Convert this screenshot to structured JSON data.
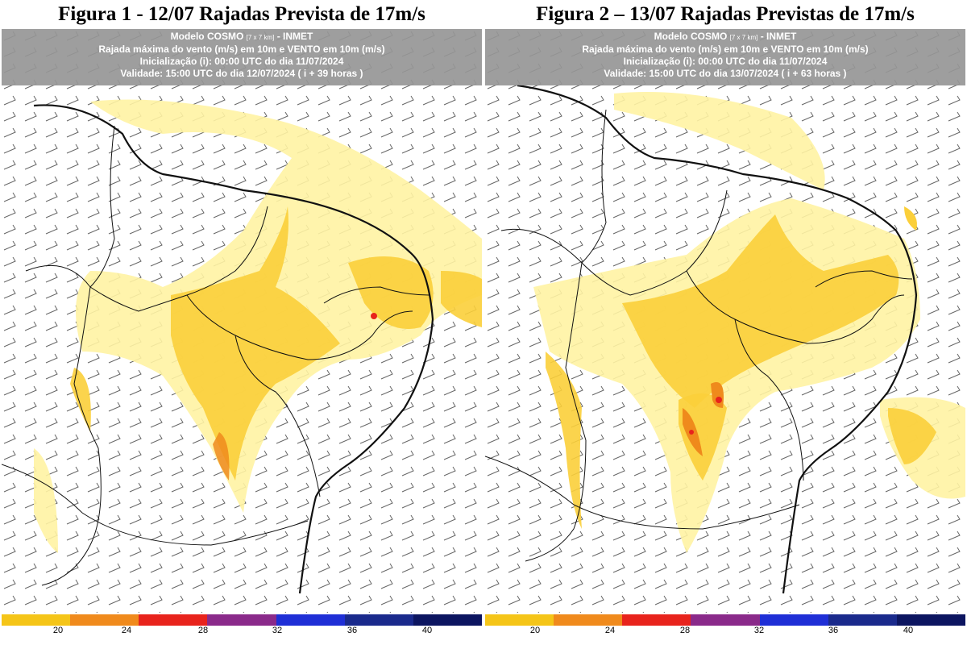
{
  "figures": [
    {
      "title": "Figura 1 - 12/07 Rajadas Prevista de 17m/s",
      "header": {
        "model": "Modelo COSMO",
        "resolution": "[7 x 7 km]",
        "agency": "- INMET",
        "variable": "Rajada máxima do vento (m/s) em 10m e VENTO em 10m (m/s)",
        "init": "Inicialização (i): 00:00 UTC do dia 11/07/2024",
        "valid": "Validade: 15:00 UTC do dia 12/07/2024 ( i + 39 horas )"
      }
    },
    {
      "title": "Figura 2 – 13/07 Rajadas Previstas de 17m/s",
      "header": {
        "model": "Modelo COSMO",
        "resolution": "[7 x 7 km]",
        "agency": "- INMET",
        "variable": "Rajada máxima do vento (m/s) em 10m e VENTO em 10m (m/s)",
        "init": "Inicialização (i): 00:00 UTC do dia 11/07/2024",
        "valid": "Validade: 15:00 UTC do dia 13/07/2024 ( i + 63 horas )"
      }
    }
  ],
  "colorbar": {
    "labels": [
      "20",
      "24",
      "28",
      "32",
      "36",
      "40"
    ],
    "colors": [
      "#f5c518",
      "#f08a1c",
      "#e8231c",
      "#8a2a8a",
      "#1f2fd6",
      "#1a2a8c",
      "#0c1560"
    ]
  }
}
